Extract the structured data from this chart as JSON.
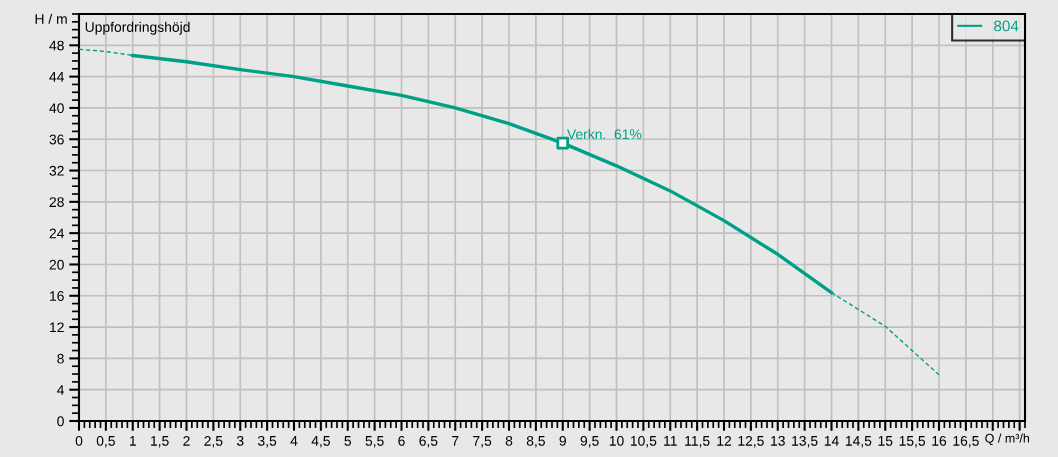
{
  "chart_data": {
    "type": "line",
    "ylabel": "H / m",
    "xlabel": "Q / m³/h",
    "annotations": [
      "Uppfordringshöjd",
      {
        "text": "Verkn.  61%",
        "x": 9,
        "y": 35.5
      }
    ],
    "series": [
      {
        "name": "804",
        "color": "#00a087",
        "line_style": "solid",
        "x": [
          1,
          2,
          3,
          4,
          5,
          6,
          7,
          8,
          9,
          10,
          11,
          12,
          13,
          14
        ],
        "values": [
          46.7,
          45.9,
          44.9,
          44.0,
          42.8,
          41.6,
          40.0,
          38.0,
          35.5,
          32.6,
          29.4,
          25.6,
          21.3,
          16.4
        ]
      },
      {
        "color": "#00a087",
        "line_style": "dashed",
        "x": [
          0,
          0.5,
          1
        ],
        "values": [
          47.5,
          47.2,
          46.7
        ]
      },
      {
        "color": "#00a087",
        "line_style": "dashed",
        "x": [
          14,
          15,
          16
        ],
        "values": [
          16.4,
          12.1,
          5.9
        ]
      },
      {
        "type": "scatter",
        "color": "#00a087",
        "marker": "square",
        "x": [
          9
        ],
        "values": [
          35.5
        ]
      }
    ],
    "xlim": [
      0,
      17.6
    ],
    "ylim": [
      0,
      52
    ],
    "xticks": [
      0,
      {
        "value": 0.5,
        "label": "0,5"
      },
      1,
      {
        "value": 1.5,
        "label": "1,5"
      },
      2,
      {
        "value": 2.5,
        "label": "2,5"
      },
      3,
      {
        "value": 3.5,
        "label": "3,5"
      },
      4,
      {
        "value": 4.5,
        "label": "4,5"
      },
      5,
      {
        "value": 5.5,
        "label": "5,5"
      },
      6,
      {
        "value": 6.5,
        "label": "6,5"
      },
      7,
      {
        "value": 7.5,
        "label": "7,5"
      },
      8,
      {
        "value": 8.5,
        "label": "8,5"
      },
      9,
      {
        "value": 9.5,
        "label": "9,5"
      },
      10,
      {
        "value": 10.5,
        "label": "10,5"
      },
      11,
      {
        "value": 11.5,
        "label": "11,5"
      },
      12,
      {
        "value": 12.5,
        "label": "12,5"
      },
      13,
      {
        "value": 13.5,
        "label": "13,5"
      },
      14,
      {
        "value": 14.5,
        "label": "14,5"
      },
      15,
      {
        "value": 15.5,
        "label": "15,5"
      },
      16,
      {
        "value": 16.5,
        "label": "16,5"
      },
      {
        "value": 17,
        "label": null
      },
      {
        "value": 17.5,
        "label": null
      }
    ],
    "yticks": [
      0,
      4,
      8,
      12,
      16,
      20,
      24,
      28,
      32,
      36,
      40,
      44,
      48
    ],
    "grid": true,
    "legend": "top right"
  }
}
